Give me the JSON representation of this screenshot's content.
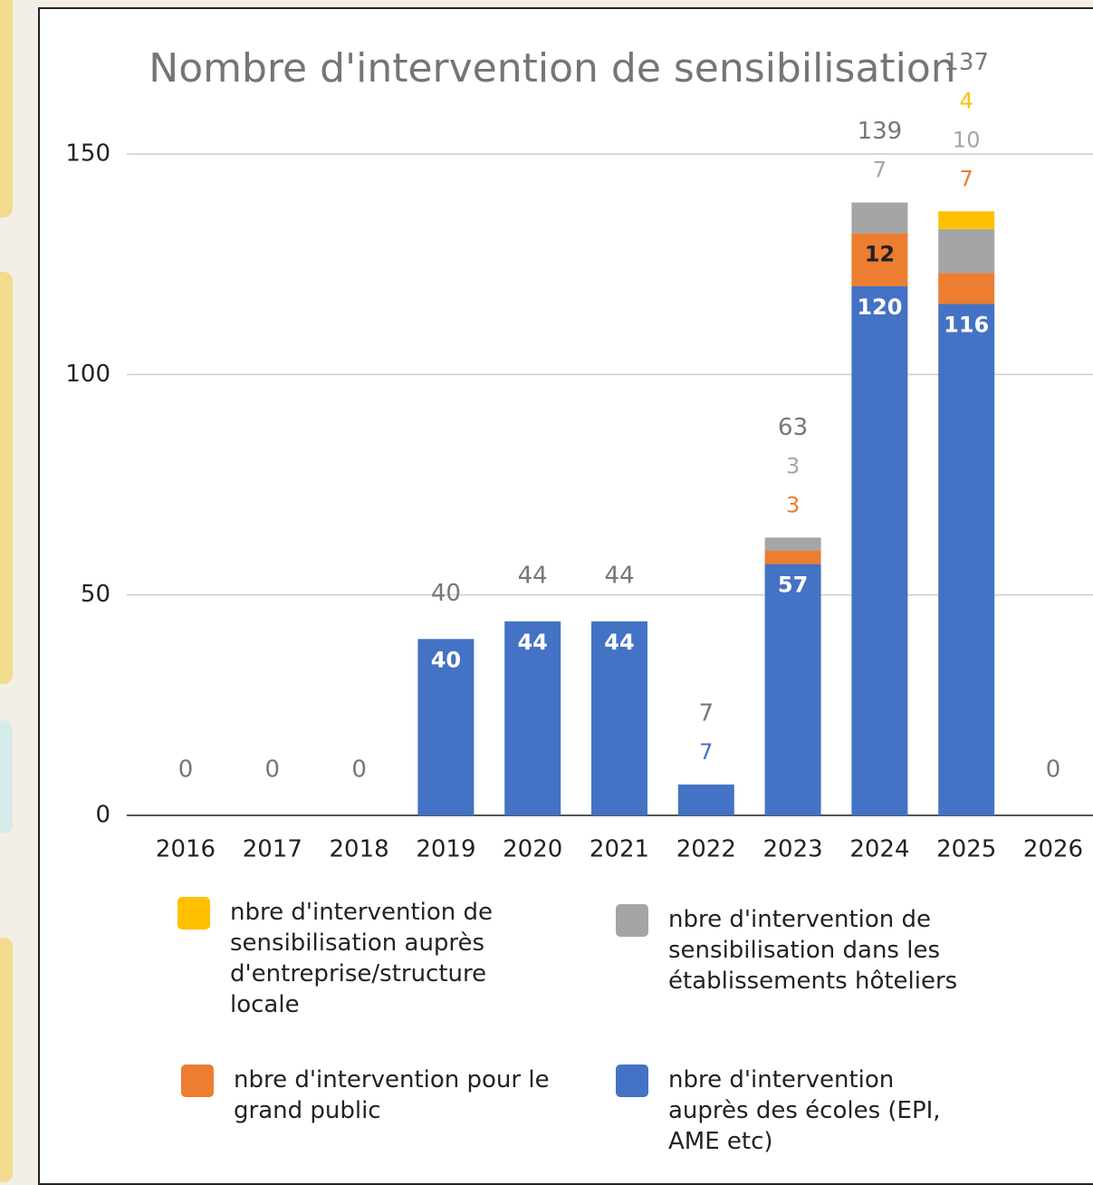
{
  "chart_data": {
    "type": "stacked_bar",
    "title": "Nombre d'intervention de sensibilisation",
    "categories": [
      "2016",
      "2017",
      "2018",
      "2019",
      "2020",
      "2021",
      "2022",
      "2023",
      "2024",
      "2025",
      "2026"
    ],
    "series": [
      {
        "name": "nbre d'intervention auprès des écoles (EPI, AME etc)",
        "color": "#4472c4",
        "values": [
          0,
          0,
          0,
          40,
          44,
          44,
          7,
          57,
          120,
          116,
          0
        ]
      },
      {
        "name": "nbre d'intervention pour le grand public",
        "color": "#ed7d31",
        "values": [
          0,
          0,
          0,
          0,
          0,
          0,
          0,
          3,
          12,
          7,
          0
        ]
      },
      {
        "name": "nbre d'intervention de sensibilisation dans les établissements hôteliers",
        "color": "#a5a5a5",
        "values": [
          0,
          0,
          0,
          0,
          0,
          0,
          0,
          3,
          7,
          10,
          0
        ]
      },
      {
        "name": "nbre d'intervention de sensibilisation auprès d'entreprise/structure locale",
        "color": "#ffc000",
        "values": [
          0,
          0,
          0,
          0,
          0,
          0,
          0,
          0,
          0,
          4,
          0
        ]
      }
    ],
    "totals": [
      0,
      0,
      0,
      40,
      44,
      44,
      7,
      63,
      139,
      137,
      0
    ],
    "ylim": [
      0,
      150
    ],
    "yticks": [
      0,
      50,
      100,
      150
    ],
    "grid": true
  }
}
